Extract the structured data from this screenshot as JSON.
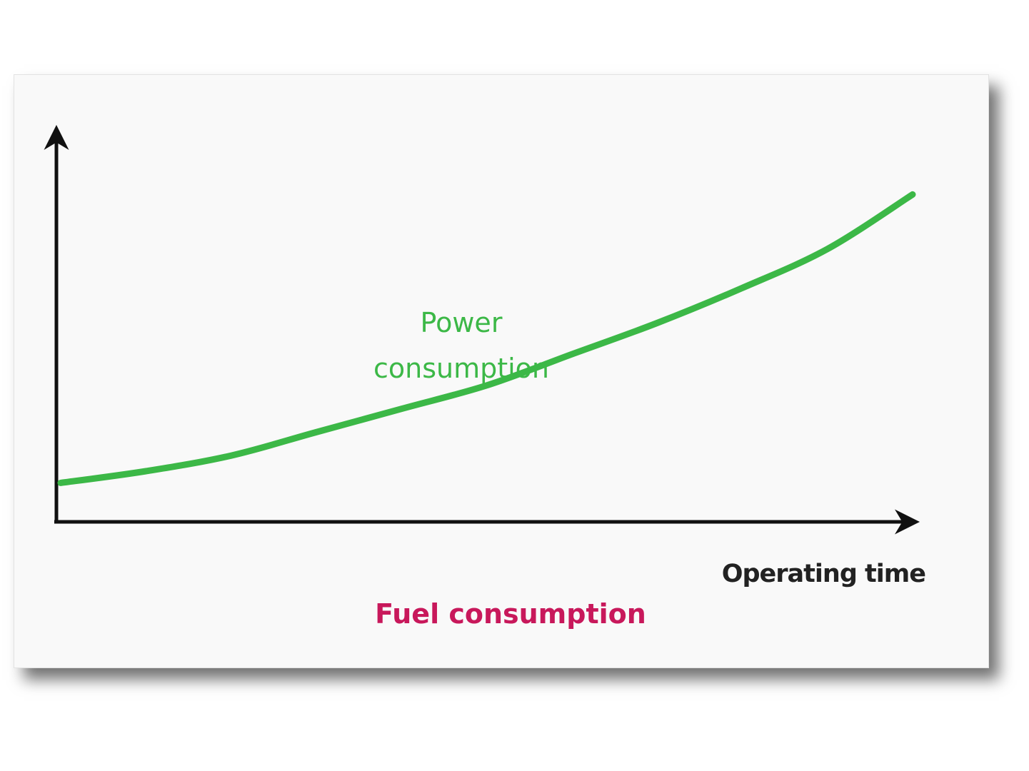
{
  "chart_data": {
    "type": "line",
    "title": "Fuel consumption",
    "xlabel": "Operating time",
    "ylabel": "",
    "grid": false,
    "legend": "none",
    "x": [
      0,
      0.1,
      0.2,
      0.3,
      0.4,
      0.5,
      0.6,
      0.7,
      0.8,
      0.9,
      1.0
    ],
    "xlim": [
      0,
      1.05
    ],
    "ylim": [
      0,
      1
    ],
    "series": [
      {
        "name": "Power consumption",
        "color": "#3cb847",
        "values": [
          0.1,
          0.13,
          0.17,
          0.23,
          0.29,
          0.35,
          0.43,
          0.51,
          0.6,
          0.7,
          0.84
        ]
      }
    ]
  },
  "colors": {
    "axis": "#111111",
    "series": "#3cb847",
    "title": "#c8185b",
    "xlabel": "#222222",
    "background": "#f9f9f9"
  }
}
